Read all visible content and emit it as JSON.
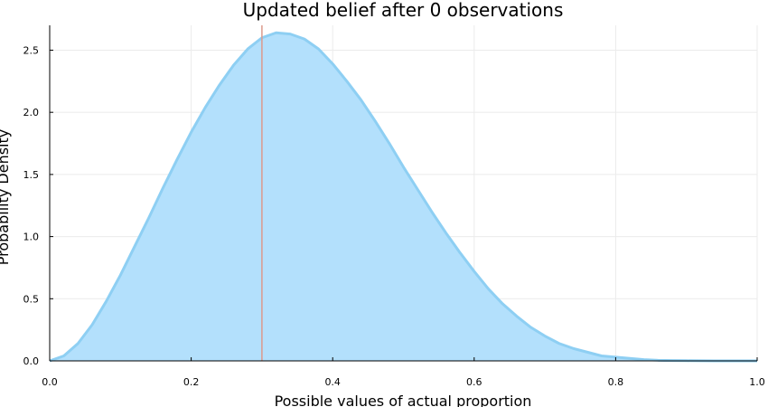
{
  "chart_data": {
    "type": "area",
    "title": "Updated belief after 0 observations",
    "xlabel": "Possible values of actual proportion",
    "ylabel": "Probability Density",
    "xlim": [
      0.0,
      1.0
    ],
    "ylim": [
      0.0,
      2.7
    ],
    "xticks": [
      "0.0",
      "0.2",
      "0.4",
      "0.6",
      "0.8",
      "1.0"
    ],
    "yticks": [
      "0.0",
      "0.5",
      "1.0",
      "1.5",
      "2.0",
      "2.5"
    ],
    "grid": true,
    "legend": "none",
    "series": [
      {
        "x": [
          0.0,
          0.02,
          0.04,
          0.06,
          0.08,
          0.1,
          0.12,
          0.14,
          0.16,
          0.18,
          0.2,
          0.22,
          0.24,
          0.26,
          0.28,
          0.3,
          0.32,
          0.34,
          0.36,
          0.38,
          0.4,
          0.42,
          0.44,
          0.46,
          0.48,
          0.5,
          0.52,
          0.54,
          0.56,
          0.58,
          0.6,
          0.62,
          0.64,
          0.66,
          0.68,
          0.7,
          0.72,
          0.74,
          0.76,
          0.78,
          0.8,
          0.82,
          0.84,
          0.86,
          0.88,
          0.9,
          0.92,
          0.94,
          0.96,
          0.98,
          1.0
        ],
        "y": [
          0.0,
          0.04,
          0.14,
          0.29,
          0.48,
          0.69,
          0.92,
          1.15,
          1.39,
          1.62,
          1.84,
          2.04,
          2.22,
          2.38,
          2.51,
          2.6,
          2.64,
          2.63,
          2.59,
          2.51,
          2.39,
          2.25,
          2.1,
          1.93,
          1.75,
          1.56,
          1.38,
          1.2,
          1.03,
          0.87,
          0.72,
          0.58,
          0.46,
          0.36,
          0.27,
          0.2,
          0.14,
          0.1,
          0.07,
          0.04,
          0.03,
          0.02,
          0.01,
          0.005,
          0.003,
          0.0015,
          0.0007,
          0.0003,
          0.0001,
          0.0,
          0.0
        ],
        "fill_color": "#b3e0fc",
        "line_color": "#8ecff3"
      }
    ],
    "vline": {
      "x": 0.3,
      "color": "#dc9a8c"
    }
  }
}
